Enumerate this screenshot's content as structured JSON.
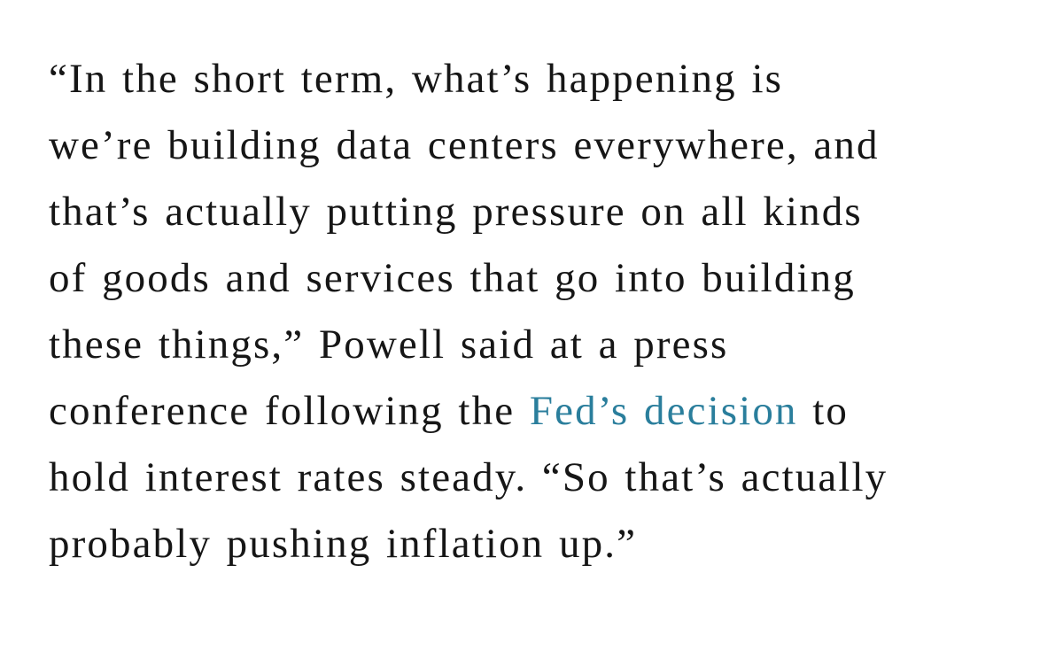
{
  "page": {
    "background_color": "#ffffff"
  },
  "article": {
    "text_color": "#161616",
    "link_color": "#2a7e9c",
    "paragraph": {
      "line1": "“In the short term, what’s happening is",
      "line2": "we’re building data centers everywhere, and",
      "line3": "that’s actually putting pressure on all kinds",
      "line4": "of goods and services that go into building",
      "line5": "these things,” Powell said at a press",
      "line6_before": "conference following the",
      "line6_link": "Fed’s decision",
      "line6_after": "to",
      "line7": "hold interest rates steady. “So that’s actually",
      "line8": "probably pushing inflation up.”"
    }
  }
}
